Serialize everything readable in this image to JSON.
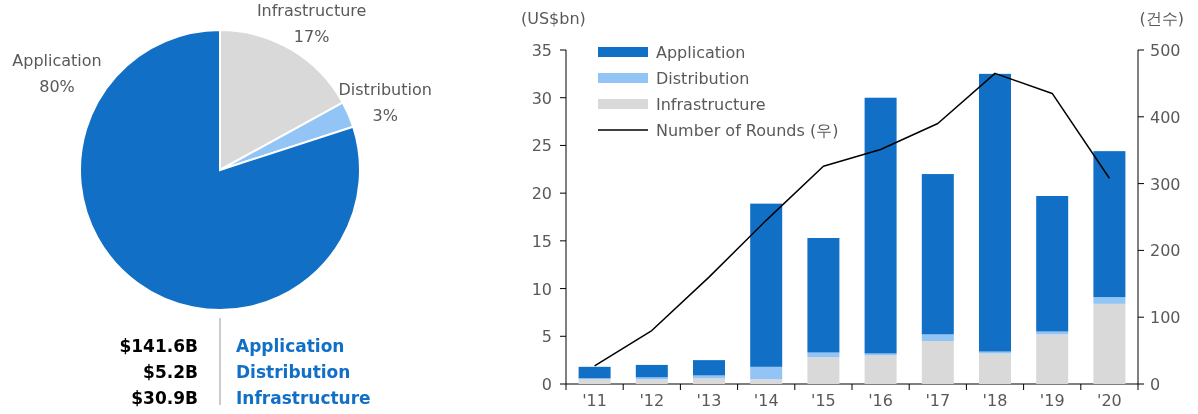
{
  "chart_data": [
    {
      "type": "pie",
      "categories": [
        "Infrastructure",
        "Distribution",
        "Application"
      ],
      "values": [
        17,
        3,
        80
      ],
      "colors": [
        "#d9d9d9",
        "#92c5f5",
        "#1170c6"
      ],
      "value_labels": [
        "17%",
        "3%",
        "80%"
      ],
      "annotations": [
        "$141.6B",
        "Application",
        "$5.2B",
        "Distribution",
        "$30.9B",
        "Infrastructure"
      ]
    },
    {
      "type": "bar",
      "stacked": true,
      "ylabel": "(US$bn)",
      "y2label": "(건수)",
      "categories": [
        "'11",
        "'12",
        "'13",
        "'14",
        "'15",
        "'16",
        "'17",
        "'18",
        "'19",
        "'20"
      ],
      "ylim": [
        0,
        35
      ],
      "yticks": [
        0,
        5,
        10,
        15,
        20,
        25,
        30,
        35
      ],
      "y2lim": [
        0,
        500
      ],
      "y2ticks": [
        0,
        100,
        200,
        300,
        400,
        500
      ],
      "legend": "top left",
      "grid": false,
      "series": [
        {
          "name": "Infrastructure",
          "color": "#d9d9d9",
          "values": [
            0.5,
            0.5,
            0.6,
            0.5,
            2.8,
            3.0,
            4.5,
            3.2,
            5.2,
            8.4
          ]
        },
        {
          "name": "Distribution",
          "color": "#92c5f5",
          "values": [
            0.1,
            0.2,
            0.3,
            1.3,
            0.5,
            0.2,
            0.7,
            0.2,
            0.3,
            0.7
          ]
        },
        {
          "name": "Application",
          "color": "#1170c6",
          "values": [
            1.2,
            1.3,
            1.6,
            17.1,
            12.0,
            26.8,
            16.8,
            29.1,
            14.2,
            15.3
          ]
        },
        {
          "name": "Number of Rounds (우)",
          "type": "line",
          "axis": "y2",
          "color": "#000000",
          "values": [
            27,
            80,
            160,
            245,
            326,
            351,
            390,
            465,
            435,
            308
          ]
        }
      ]
    }
  ]
}
